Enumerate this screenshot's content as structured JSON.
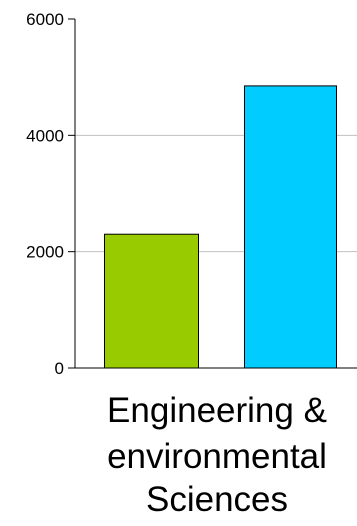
{
  "chart_data": {
    "type": "bar",
    "categories": [
      "Engineering & environmental Sciences"
    ],
    "category_lines": [
      "Engineering &",
      "environmental",
      "Sciences"
    ],
    "series": [
      {
        "values": [
          2300
        ],
        "color": "#99cc00"
      },
      {
        "values": [
          4850
        ],
        "color": "#00ccff"
      }
    ],
    "ylim": [
      0,
      6000
    ],
    "yticks": [
      {
        "value": 0,
        "label": "0"
      },
      {
        "value": 2000,
        "label": "2000"
      },
      {
        "value": 4000,
        "label": "4000"
      },
      {
        "value": 6000,
        "label": "6000"
      }
    ],
    "grid": true,
    "gridline_color": "#c0c0c0",
    "axis_color": "#000000",
    "bar_outline_color": "#000000",
    "title": "",
    "xlabel": "",
    "ylabel": ""
  }
}
